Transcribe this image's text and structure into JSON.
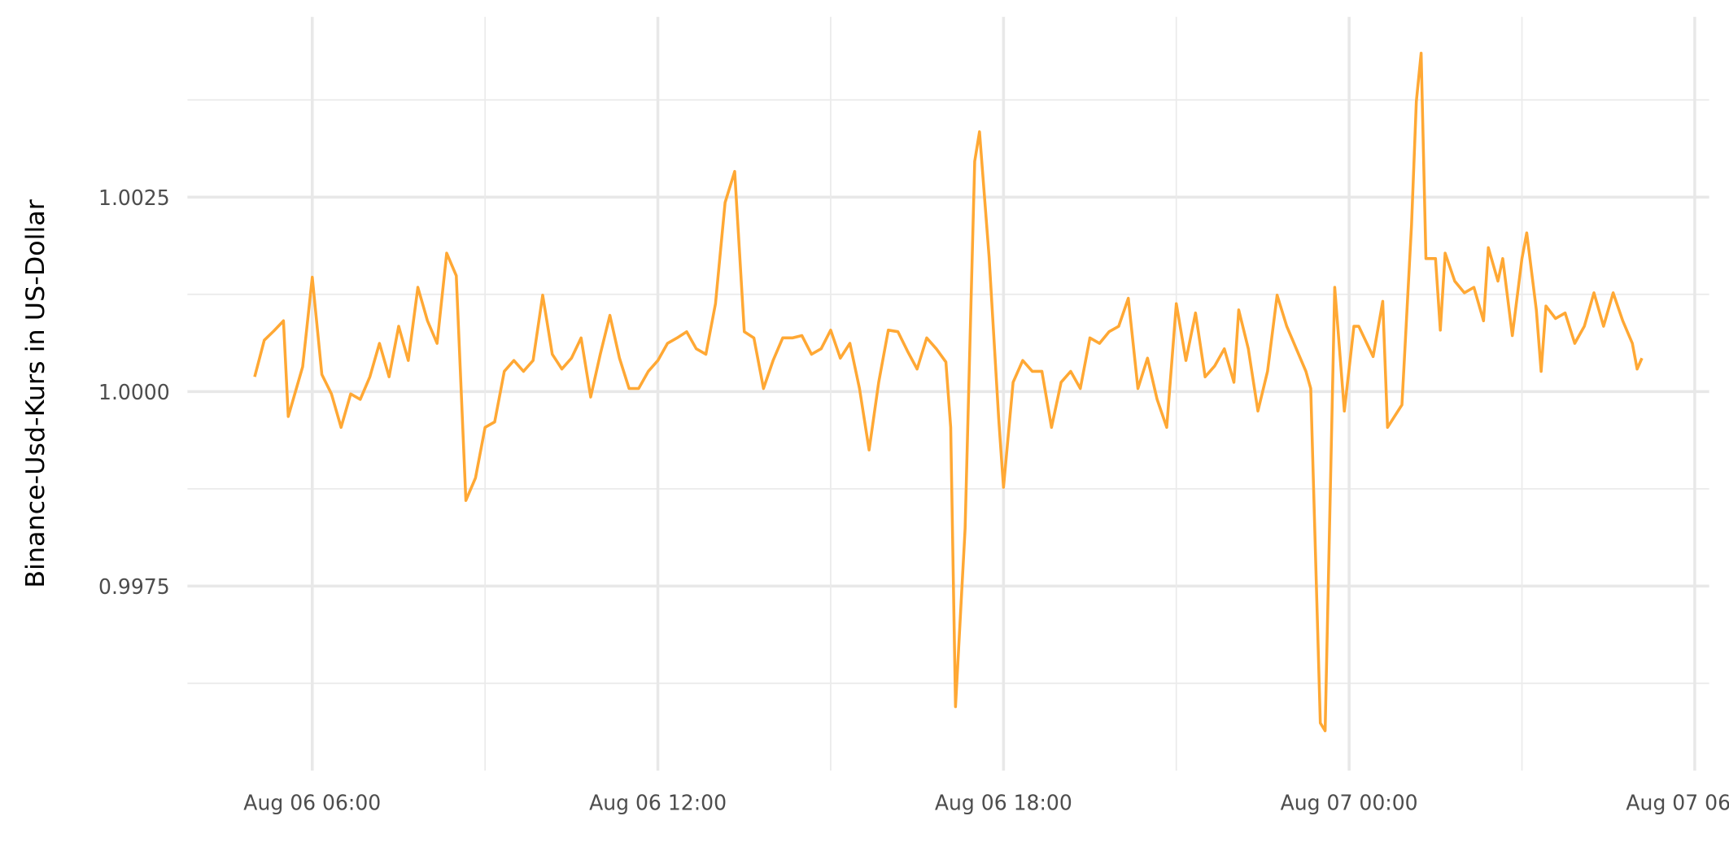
{
  "chart_data": {
    "type": "line",
    "y_label": "Binance-Usd-Kurs in US-Dollar",
    "x": [
      "Aug 06 05:00",
      "Aug 06 05:10",
      "Aug 06 05:20",
      "Aug 06 05:30",
      "Aug 06 05:35",
      "Aug 06 05:50",
      "Aug 06 06:00",
      "Aug 06 06:10",
      "Aug 06 06:20",
      "Aug 06 06:30",
      "Aug 06 06:40",
      "Aug 06 06:50",
      "Aug 06 07:00",
      "Aug 06 07:10",
      "Aug 06 07:20",
      "Aug 06 07:30",
      "Aug 06 07:40",
      "Aug 06 07:50",
      "Aug 06 08:00",
      "Aug 06 08:10",
      "Aug 06 08:20",
      "Aug 06 08:30",
      "Aug 06 08:40",
      "Aug 06 08:50",
      "Aug 06 09:00",
      "Aug 06 09:10",
      "Aug 06 09:20",
      "Aug 06 09:30",
      "Aug 06 09:40",
      "Aug 06 09:50",
      "Aug 06 10:00",
      "Aug 06 10:10",
      "Aug 06 10:20",
      "Aug 06 10:30",
      "Aug 06 10:40",
      "Aug 06 10:50",
      "Aug 06 11:00",
      "Aug 06 11:10",
      "Aug 06 11:20",
      "Aug 06 11:30",
      "Aug 06 11:40",
      "Aug 06 11:50",
      "Aug 06 12:00",
      "Aug 06 12:10",
      "Aug 06 12:20",
      "Aug 06 12:30",
      "Aug 06 12:40",
      "Aug 06 12:50",
      "Aug 06 13:00",
      "Aug 06 13:10",
      "Aug 06 13:20",
      "Aug 06 13:30",
      "Aug 06 13:40",
      "Aug 06 13:50",
      "Aug 06 14:00",
      "Aug 06 14:10",
      "Aug 06 14:20",
      "Aug 06 14:30",
      "Aug 06 14:40",
      "Aug 06 14:50",
      "Aug 06 15:00",
      "Aug 06 15:10",
      "Aug 06 15:20",
      "Aug 06 15:30",
      "Aug 06 15:40",
      "Aug 06 15:50",
      "Aug 06 16:00",
      "Aug 06 16:10",
      "Aug 06 16:20",
      "Aug 06 16:30",
      "Aug 06 16:40",
      "Aug 06 16:50",
      "Aug 06 17:00",
      "Aug 06 17:05",
      "Aug 06 17:10",
      "Aug 06 17:20",
      "Aug 06 17:30",
      "Aug 06 17:35",
      "Aug 06 17:45",
      "Aug 06 17:55",
      "Aug 06 18:00",
      "Aug 06 18:10",
      "Aug 06 18:20",
      "Aug 06 18:30",
      "Aug 06 18:40",
      "Aug 06 18:50",
      "Aug 06 19:00",
      "Aug 06 19:10",
      "Aug 06 19:20",
      "Aug 06 19:30",
      "Aug 06 19:40",
      "Aug 06 19:50",
      "Aug 06 20:00",
      "Aug 06 20:10",
      "Aug 06 20:20",
      "Aug 06 20:30",
      "Aug 06 20:40",
      "Aug 06 20:50",
      "Aug 06 21:00",
      "Aug 06 21:10",
      "Aug 06 21:20",
      "Aug 06 21:30",
      "Aug 06 21:40",
      "Aug 06 21:50",
      "Aug 06 22:00",
      "Aug 06 22:05",
      "Aug 06 22:15",
      "Aug 06 22:25",
      "Aug 06 22:35",
      "Aug 06 22:45",
      "Aug 06 22:55",
      "Aug 06 23:05",
      "Aug 06 23:15",
      "Aug 06 23:20",
      "Aug 06 23:30",
      "Aug 06 23:35",
      "Aug 06 23:45",
      "Aug 06 23:55",
      "Aug 07 00:05",
      "Aug 07 00:10",
      "Aug 07 00:25",
      "Aug 07 00:35",
      "Aug 07 00:40",
      "Aug 07 00:55",
      "Aug 07 01:05",
      "Aug 07 01:10",
      "Aug 07 01:15",
      "Aug 07 01:20",
      "Aug 07 01:30",
      "Aug 07 01:35",
      "Aug 07 01:40",
      "Aug 07 01:50",
      "Aug 07 02:00",
      "Aug 07 02:10",
      "Aug 07 02:20",
      "Aug 07 02:25",
      "Aug 07 02:35",
      "Aug 07 02:40",
      "Aug 07 02:50",
      "Aug 07 03:00",
      "Aug 07 03:05",
      "Aug 07 03:15",
      "Aug 07 03:20",
      "Aug 07 03:25",
      "Aug 07 03:35",
      "Aug 07 03:45",
      "Aug 07 03:55",
      "Aug 07 04:05",
      "Aug 07 04:15",
      "Aug 07 04:25",
      "Aug 07 04:35",
      "Aug 07 04:45",
      "Aug 07 04:55",
      "Aug 07 05:00",
      "Aug 07 05:05"
    ],
    "series": [
      {
        "color": "#ffa834",
        "values": [
          1.00019,
          1.00066,
          1.00078,
          1.00091,
          0.99968,
          1.00032,
          1.00147,
          1.00022,
          0.99997,
          0.99954,
          0.99997,
          0.9999,
          1.00019,
          1.00062,
          1.00019,
          1.00084,
          1.0004,
          1.00134,
          1.00091,
          1.00062,
          1.00178,
          1.00149,
          0.9986,
          0.99889,
          0.99954,
          0.99961,
          1.00026,
          1.0004,
          1.00026,
          1.0004,
          1.00124,
          1.00048,
          1.00029,
          1.00043,
          1.00069,
          0.99993,
          1.00048,
          1.00098,
          1.00043,
          1.00004,
          1.00004,
          1.00026,
          1.0004,
          1.00062,
          1.00069,
          1.00077,
          1.00055,
          1.00048,
          1.00113,
          1.00243,
          1.00283,
          1.00077,
          1.00069,
          1.00004,
          1.0004,
          1.00069,
          1.00069,
          1.00072,
          1.00048,
          1.00055,
          1.00079,
          1.00043,
          1.00062,
          1.00004,
          0.99925,
          1.00012,
          1.00079,
          1.00077,
          1.00052,
          1.00029,
          1.00069,
          1.00055,
          1.00038,
          0.99954,
          0.99595,
          0.99824,
          1.00296,
          1.00334,
          1.00173,
          0.99965,
          0.99877,
          1.00012,
          1.0004,
          1.00026,
          1.00026,
          0.99954,
          1.00012,
          1.00026,
          1.00004,
          1.00069,
          1.00062,
          1.00077,
          1.00084,
          1.0012,
          1.00004,
          1.00043,
          0.9999,
          0.99954,
          1.00113,
          1.0004,
          1.00101,
          1.00019,
          1.00033,
          1.00055,
          1.00012,
          1.00105,
          1.00055,
          0.99975,
          1.00026,
          1.00124,
          1.00084,
          1.00055,
          1.00026,
          1.00004,
          0.99574,
          0.99564,
          1.00134,
          0.99975,
          1.00084,
          1.00084,
          1.00045,
          1.00116,
          0.99954,
          0.99983,
          1.00214,
          1.00373,
          1.00435,
          1.00171,
          1.00171,
          1.00079,
          1.00178,
          1.00142,
          1.00127,
          1.00134,
          1.00091,
          1.00185,
          1.00142,
          1.00171,
          1.00072,
          1.00171,
          1.00204,
          1.00105,
          1.00026,
          1.0011,
          1.00094,
          1.00101,
          1.00062,
          1.00084,
          1.00127,
          1.00084,
          1.00127,
          1.00091,
          1.00062,
          1.00029,
          1.00043
        ]
      }
    ],
    "xlim": [
      "Aug 06 03:50",
      "Aug 07 06:15"
    ],
    "xticks": [
      "Aug 06 06:00",
      "Aug 06 12:00",
      "Aug 06 18:00",
      "Aug 07 00:00",
      "Aug 07 06:00"
    ],
    "ylim": [
      0.9952,
      1.0046
    ],
    "yticks": [
      0.9975,
      {
        "value": 1,
        "label": "1.0000"
      },
      1.0025
    ],
    "grid": true
  }
}
